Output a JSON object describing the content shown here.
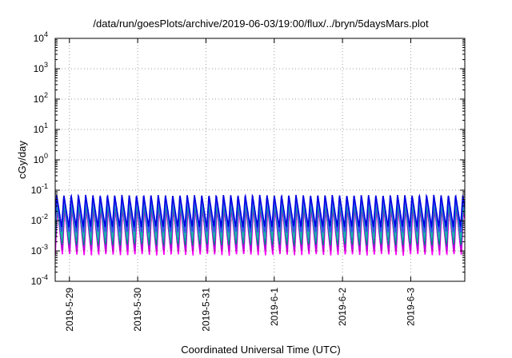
{
  "chart_data": {
    "type": "line",
    "title": "/data/run/goesPlots/archive/2019-06-03/19:00/flux/../bryn/5daysMars.plot",
    "xlabel": "Coordinated Universal Time (UTC)",
    "ylabel": "cGy/day",
    "y_scale": "log",
    "ylim": [
      0.0001,
      10000
    ],
    "y_ticks": [
      {
        "base": "10",
        "exp": "-4"
      },
      {
        "base": "10",
        "exp": "-3"
      },
      {
        "base": "10",
        "exp": "-2"
      },
      {
        "base": "10",
        "exp": "-1"
      },
      {
        "base": "10",
        "exp": "0"
      },
      {
        "base": "10",
        "exp": "1"
      },
      {
        "base": "10",
        "exp": "2"
      },
      {
        "base": "10",
        "exp": "3"
      },
      {
        "base": "10",
        "exp": "4"
      }
    ],
    "x_start": "2019-05-28T19:00",
    "x_end": "2019-06-03T19:00",
    "x_ticks": [
      "2019-5-29",
      "2019-5-30",
      "2019-5-31",
      "2019-6-1",
      "2019-6-2",
      "2019-6-3"
    ],
    "x_tick_dates": [
      "2019-05-29T00:00",
      "2019-05-30T00:00",
      "2019-05-31T00:00",
      "2019-06-01T00:00",
      "2019-06-02T00:00",
      "2019-06-03T00:00"
    ],
    "grid": true,
    "legend": "none",
    "oscillation_period_hours": 2.55,
    "series": [
      {
        "color": "#ff00ff",
        "min": 0.0007,
        "max": 0.028
      },
      {
        "color": "#c000c0",
        "min": 0.0009,
        "max": 0.032
      },
      {
        "color": "#b000e0",
        "min": 0.0011,
        "max": 0.035
      },
      {
        "color": "#008080",
        "min": 0.0015,
        "max": 0.04
      },
      {
        "color": "#00a0a0",
        "min": 0.002,
        "max": 0.045
      },
      {
        "color": "#20b0b0",
        "min": 0.0025,
        "max": 0.05
      },
      {
        "color": "#4040ff",
        "min": 0.004,
        "max": 0.06
      },
      {
        "color": "#0000e0",
        "min": 0.006,
        "max": 0.07
      }
    ]
  }
}
